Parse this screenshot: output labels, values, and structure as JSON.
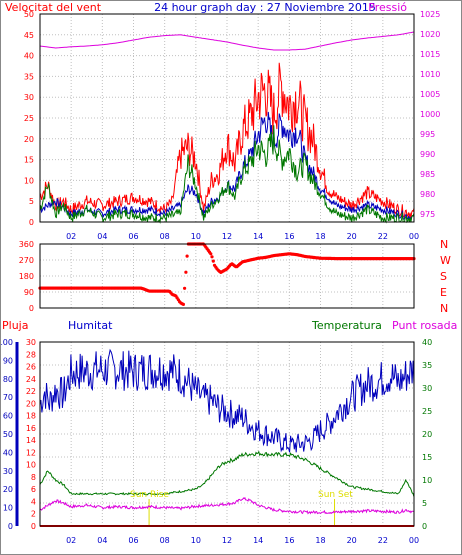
{
  "header": {
    "wind_label": "Velocitat del vent",
    "title": "24 hour graph day : 27 Noviembre 2015",
    "pressure_label": "Pressió"
  },
  "labels": {
    "rain": "Pluja",
    "humidity": "Humitat",
    "temperature": "Temperatura",
    "dew_point": "Punt rosada",
    "sun_rise": "Sun Rise",
    "sun_set": "Sun Set"
  },
  "compass": [
    "N",
    "W",
    "S",
    "E",
    "N"
  ],
  "colors": {
    "red": "#ff0000",
    "blue": "#0000bb",
    "green": "#007700",
    "magenta": "#dd00dd",
    "sun": "#dddd00",
    "grid": "#c0c0c0",
    "axis_blue": "#0000bb",
    "title_blue": "#0000cc"
  },
  "chart_data": [
    {
      "type": "line",
      "name": "wind-pressure",
      "x_ticks": [
        "02",
        "04",
        "06",
        "08",
        "10",
        "12",
        "14",
        "16",
        "18",
        "20",
        "22",
        "00"
      ],
      "y_left_ticks": [
        0,
        5,
        10,
        15,
        20,
        25,
        30,
        35,
        40,
        45,
        50
      ],
      "y_right_ticks": [
        975,
        980,
        985,
        990,
        995,
        1000,
        1005,
        1010,
        1015,
        1020,
        1025
      ],
      "ylim_left": [
        0,
        50
      ],
      "ylim_right": [
        973,
        1025
      ],
      "grid": true,
      "series": [
        {
          "key": "gust",
          "color": "#ff0000",
          "hours": [
            0,
            0.5,
            1,
            1.5,
            2,
            3,
            4,
            5,
            6,
            7,
            8,
            8.5,
            9,
            9.5,
            10,
            10.5,
            11,
            11.5,
            12,
            12.5,
            13,
            13.5,
            14,
            14.5,
            15,
            15.5,
            16,
            16.5,
            17,
            17.5,
            18,
            18.5,
            19,
            19.5,
            20,
            21,
            22,
            23,
            24
          ],
          "values": [
            6,
            9,
            4,
            5,
            3,
            5,
            4,
            5,
            6,
            5,
            3,
            5,
            16,
            18,
            15,
            3,
            10,
            12,
            19,
            14,
            22,
            25,
            30,
            32,
            26,
            33,
            28,
            30,
            24,
            20,
            13,
            8,
            6,
            5,
            4,
            7,
            5,
            3,
            2
          ]
        },
        {
          "key": "average",
          "color": "#0000bb",
          "hours": [
            0,
            1,
            2,
            3,
            4,
            5,
            6,
            7,
            8,
            9,
            9.5,
            10,
            10.5,
            11,
            11.5,
            12,
            12.5,
            13,
            13.5,
            14,
            14.5,
            15,
            15.5,
            16,
            16.5,
            17,
            17.5,
            18,
            18.5,
            19,
            20,
            21,
            22,
            23,
            24
          ],
          "values": [
            3,
            5,
            2,
            3,
            2,
            3,
            3,
            3,
            2,
            4,
            8,
            7,
            2,
            5,
            6,
            9,
            8,
            13,
            16,
            21,
            25,
            19,
            24,
            21,
            22,
            15,
            12,
            8,
            6,
            4,
            3,
            4,
            3,
            2,
            1
          ]
        },
        {
          "key": "temperature",
          "color": "#007700",
          "hours": [
            0,
            0.5,
            1,
            1.5,
            2,
            3,
            4,
            5,
            6,
            7,
            8,
            9,
            9.5,
            10,
            10.5,
            11,
            11.5,
            12,
            12.5,
            13,
            13.5,
            14,
            14.5,
            15,
            15.5,
            16,
            16.5,
            17,
            17.5,
            18,
            18.5,
            19,
            20,
            21,
            22,
            23,
            24
          ],
          "values": [
            3,
            9,
            2,
            4,
            1,
            3,
            1,
            2,
            2,
            1,
            1,
            2,
            14,
            9,
            1,
            4,
            6,
            9,
            6,
            12,
            14,
            18,
            16,
            20,
            15,
            17,
            12,
            14,
            10,
            7,
            4,
            2,
            1,
            3,
            1,
            1,
            1
          ]
        },
        {
          "key": "pressure",
          "axis": "right",
          "color": "#dd00dd",
          "hours": [
            0,
            1,
            2,
            3,
            4,
            5,
            6,
            7,
            8,
            9,
            10,
            11,
            12,
            13,
            14,
            15,
            16,
            17,
            18,
            19,
            20,
            21,
            22,
            23,
            24
          ],
          "values": [
            1017,
            1016.5,
            1016.8,
            1017,
            1017.3,
            1017.8,
            1018.5,
            1019.2,
            1019.6,
            1019.8,
            1019.2,
            1018.6,
            1018,
            1017.2,
            1016.5,
            1016,
            1016,
            1016.2,
            1017,
            1017.8,
            1018.5,
            1019,
            1019.4,
            1019.8,
            1020.5
          ]
        }
      ]
    },
    {
      "type": "scatter",
      "name": "wind-direction",
      "y_ticks": [
        0,
        90,
        180,
        270,
        360
      ],
      "ylim": [
        0,
        360
      ],
      "color": "#ff0000",
      "hours": [
        0,
        1,
        2,
        3,
        4,
        5,
        6,
        6.5,
        7,
        7.5,
        8,
        8.3,
        8.5,
        8.7,
        9,
        9.2,
        9.5,
        10,
        10.5,
        11,
        11.2,
        11.4,
        11.6,
        11.8,
        12,
        12.3,
        12.6,
        13,
        13.5,
        14,
        14.5,
        15,
        15.5,
        16,
        16.5,
        17,
        18,
        19,
        20,
        21,
        22,
        23,
        24
      ],
      "values": [
        112,
        112,
        112,
        112,
        112,
        112,
        112,
        112,
        95,
        95,
        95,
        95,
        75,
        70,
        30,
        20,
        360,
        360,
        360,
        300,
        240,
        215,
        200,
        210,
        220,
        250,
        230,
        260,
        270,
        280,
        285,
        295,
        300,
        305,
        300,
        290,
        280,
        278,
        278,
        278,
        278,
        278,
        278
      ]
    },
    {
      "type": "line",
      "name": "humidity-temp",
      "x_ticks": [
        "02",
        "04",
        "06",
        "08",
        "10",
        "12",
        "14",
        "16",
        "18",
        "20",
        "22",
        "00"
      ],
      "y_blue_ticks": [
        0,
        10,
        20,
        30,
        40,
        50,
        60,
        70,
        80,
        90,
        100
      ],
      "y_red_ticks": [
        0,
        2,
        4,
        6,
        8,
        10,
        12,
        14,
        16,
        18,
        20,
        22,
        24,
        26,
        28,
        30
      ],
      "y_green_ticks": [
        0,
        5,
        10,
        15,
        20,
        25,
        30,
        35,
        40
      ],
      "grid": true,
      "sun_rise_hour": 7,
      "sun_set_hour": 18.9,
      "series": [
        {
          "key": "humidity",
          "color": "#0000bb",
          "hours": [
            0,
            0.3,
            0.6,
            1,
            1.5,
            2,
            2.5,
            3,
            4,
            5,
            6,
            7,
            8,
            8.5,
            9,
            9.5,
            10,
            10.5,
            11,
            11.5,
            12,
            12.5,
            13,
            13.5,
            14,
            15,
            16,
            17,
            17.5,
            18,
            18.5,
            19,
            19.5,
            20,
            20.5,
            21,
            21.5,
            22,
            22.5,
            23,
            23.5,
            24
          ],
          "values": [
            66,
            73,
            67,
            74,
            71,
            83,
            84,
            84,
            85,
            85,
            84,
            85,
            85,
            84,
            82,
            78,
            73,
            69,
            68,
            64,
            62,
            60,
            59,
            55,
            52,
            48,
            44,
            45,
            47,
            52,
            55,
            61,
            66,
            70,
            74,
            77,
            78,
            80,
            82,
            78,
            82,
            85
          ]
        },
        {
          "key": "temperature",
          "color": "#007700",
          "hours": [
            0,
            0.5,
            1,
            1.5,
            2,
            3,
            4,
            5,
            6,
            7,
            8,
            9,
            10,
            10.5,
            11,
            11.5,
            12,
            12.5,
            13,
            14,
            15,
            16,
            16.5,
            17,
            17.5,
            18,
            18.5,
            19,
            19.5,
            20,
            21,
            22,
            23,
            23.5,
            24
          ],
          "values": [
            9,
            12,
            10,
            9,
            7,
            7,
            7,
            7,
            7,
            7,
            7,
            7.5,
            8,
            9,
            11,
            13,
            14,
            14.5,
            15.5,
            15.8,
            15.5,
            15.5,
            15,
            14.5,
            13.5,
            12.5,
            11.5,
            10.5,
            9.5,
            8.5,
            8,
            7.5,
            7,
            10,
            6.5
          ]
        },
        {
          "key": "dew_point",
          "color": "#dd00dd",
          "hours": [
            0,
            0.5,
            1,
            1.5,
            2,
            3,
            4,
            5,
            6,
            7,
            8,
            9,
            10,
            11,
            12,
            12.5,
            13,
            13.5,
            14,
            14.5,
            15,
            16,
            17,
            18,
            19,
            20,
            21,
            22,
            23,
            23.5,
            24
          ],
          "values": [
            3.5,
            4.5,
            5.5,
            5,
            4.2,
            4.5,
            4,
            4.2,
            4,
            4.2,
            4,
            3.8,
            4.3,
            4.5,
            4.8,
            5,
            6,
            5.5,
            4.5,
            4,
            3.5,
            3.2,
            3,
            3,
            3,
            3.2,
            3.3,
            3.2,
            3,
            3.5,
            3
          ]
        },
        {
          "key": "rain",
          "color": "#ff0000",
          "hours": [
            0,
            24
          ],
          "values": [
            0,
            0
          ]
        }
      ]
    }
  ]
}
